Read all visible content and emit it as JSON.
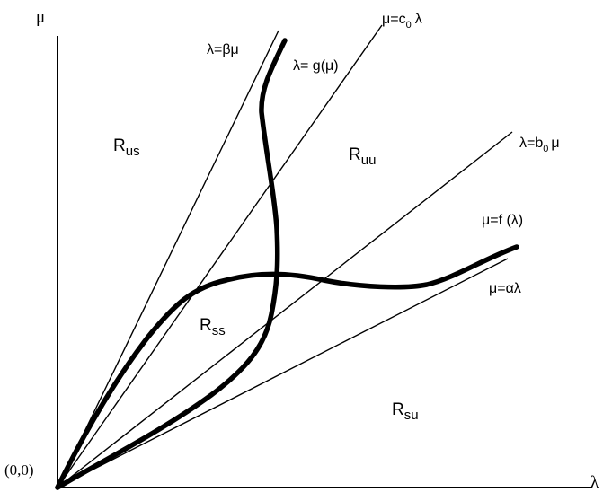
{
  "axes": {
    "y_label": "μ",
    "x_label": "λ",
    "origin_label": "(0,0)"
  },
  "lines": {
    "beta": {
      "label": "λ=βμ"
    },
    "c0": {
      "label_main": "μ=c",
      "label_sub": "0",
      "label_tail": "λ"
    },
    "b0": {
      "label_main": "λ=b",
      "label_sub": "0",
      "label_tail": "μ"
    },
    "alpha": {
      "label": "μ=αλ"
    }
  },
  "curves": {
    "g": {
      "label": "λ= g(μ)"
    },
    "f": {
      "label": "μ=f (λ)"
    }
  },
  "regions": {
    "us": {
      "main": "R",
      "sub": "us"
    },
    "uu": {
      "main": "R",
      "sub": "uu"
    },
    "ss": {
      "main": "R",
      "sub": "ss"
    },
    "su": {
      "main": "R",
      "sub": "su"
    }
  },
  "colors": {
    "ink": "#000000",
    "background": "#ffffff"
  }
}
